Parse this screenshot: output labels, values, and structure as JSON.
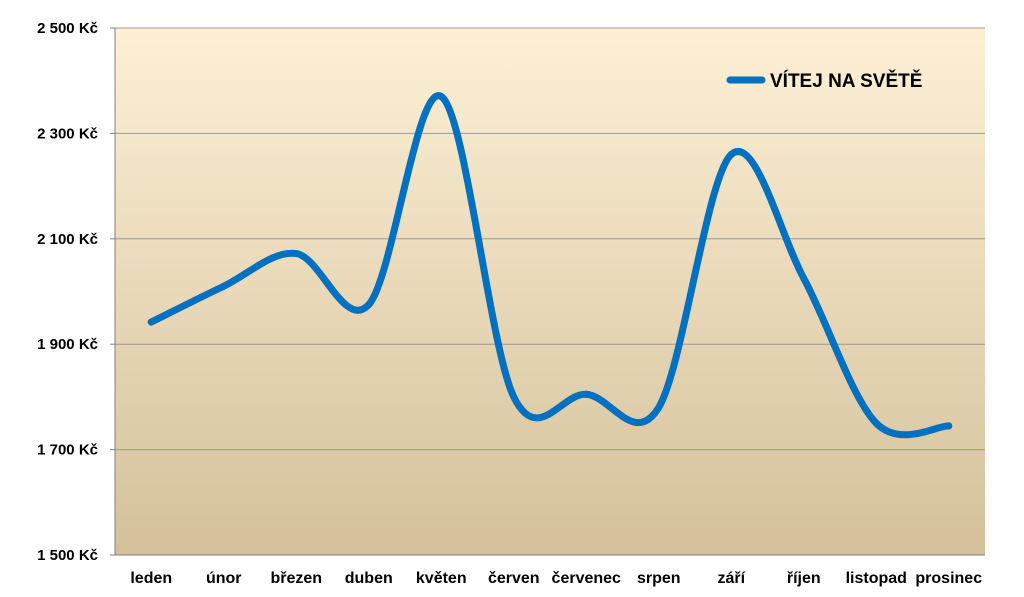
{
  "chart_data": {
    "type": "line",
    "categories": [
      "leden",
      "únor",
      "březen",
      "duben",
      "květen",
      "červen",
      "červenec",
      "srpen",
      "září",
      "říjen",
      "listopad",
      "prosinec"
    ],
    "series": [
      {
        "name": "VÍTEJ NA SVĚTĚ",
        "values": [
          1942,
          2010,
          2072,
          1975,
          2370,
          1800,
          1805,
          1780,
          2260,
          2025,
          1750,
          1745
        ],
        "color": "#0070C0"
      }
    ],
    "y_tick_labels": [
      "1 500 Kč",
      "1 700 Kč",
      "1 900 Kč",
      "2 100 Kč",
      "2 300 Kč",
      "2 500 Kč"
    ],
    "y_ticks": [
      1500,
      1700,
      1900,
      2100,
      2300,
      2500
    ],
    "ylim": [
      1500,
      2500
    ],
    "grid": true,
    "legend_position": "top-right",
    "background_gradient": [
      "#fdf0d5",
      "#d4c19b"
    ],
    "gridline_color": "#9a9a9a"
  }
}
